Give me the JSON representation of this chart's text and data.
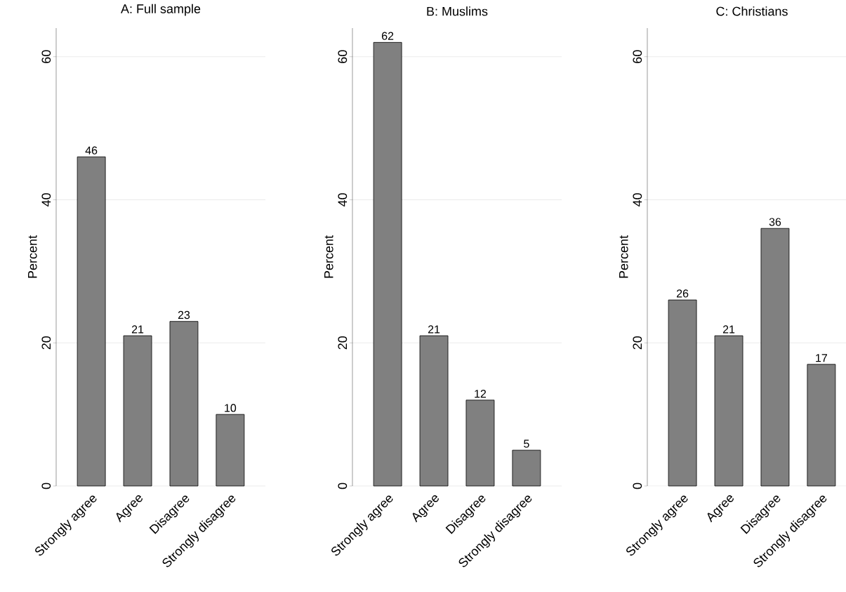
{
  "chart_data": [
    {
      "type": "bar",
      "title": "A: Full sample",
      "ylabel": "Percent",
      "categories": [
        "Strongly agree",
        "Agree",
        "Disagree",
        "Strongly disagree"
      ],
      "values": [
        46,
        21,
        23,
        10
      ],
      "color": "#808080",
      "ylim": [
        0,
        64
      ],
      "yticks": [
        0,
        20,
        40,
        60
      ],
      "grid": "y",
      "data_labels": true
    },
    {
      "type": "bar",
      "title": "B: Muslims",
      "ylabel": "Percent",
      "categories": [
        "Strongly agree",
        "Agree",
        "Disagree",
        "Strongly disagree"
      ],
      "values": [
        62,
        21,
        12,
        5
      ],
      "color": "#808080",
      "ylim": [
        0,
        64
      ],
      "yticks": [
        0,
        20,
        40,
        60
      ],
      "grid": "y",
      "data_labels": true
    },
    {
      "type": "bar",
      "title": "C: Christians",
      "ylabel": "Percent",
      "categories": [
        "Strongly agree",
        "Agree",
        "Disagree",
        "Strongly disagree"
      ],
      "values": [
        26,
        21,
        36,
        17
      ],
      "color": "#808080",
      "ylim": [
        0,
        64
      ],
      "yticks": [
        0,
        20,
        40,
        60
      ],
      "grid": "y",
      "data_labels": true
    }
  ]
}
